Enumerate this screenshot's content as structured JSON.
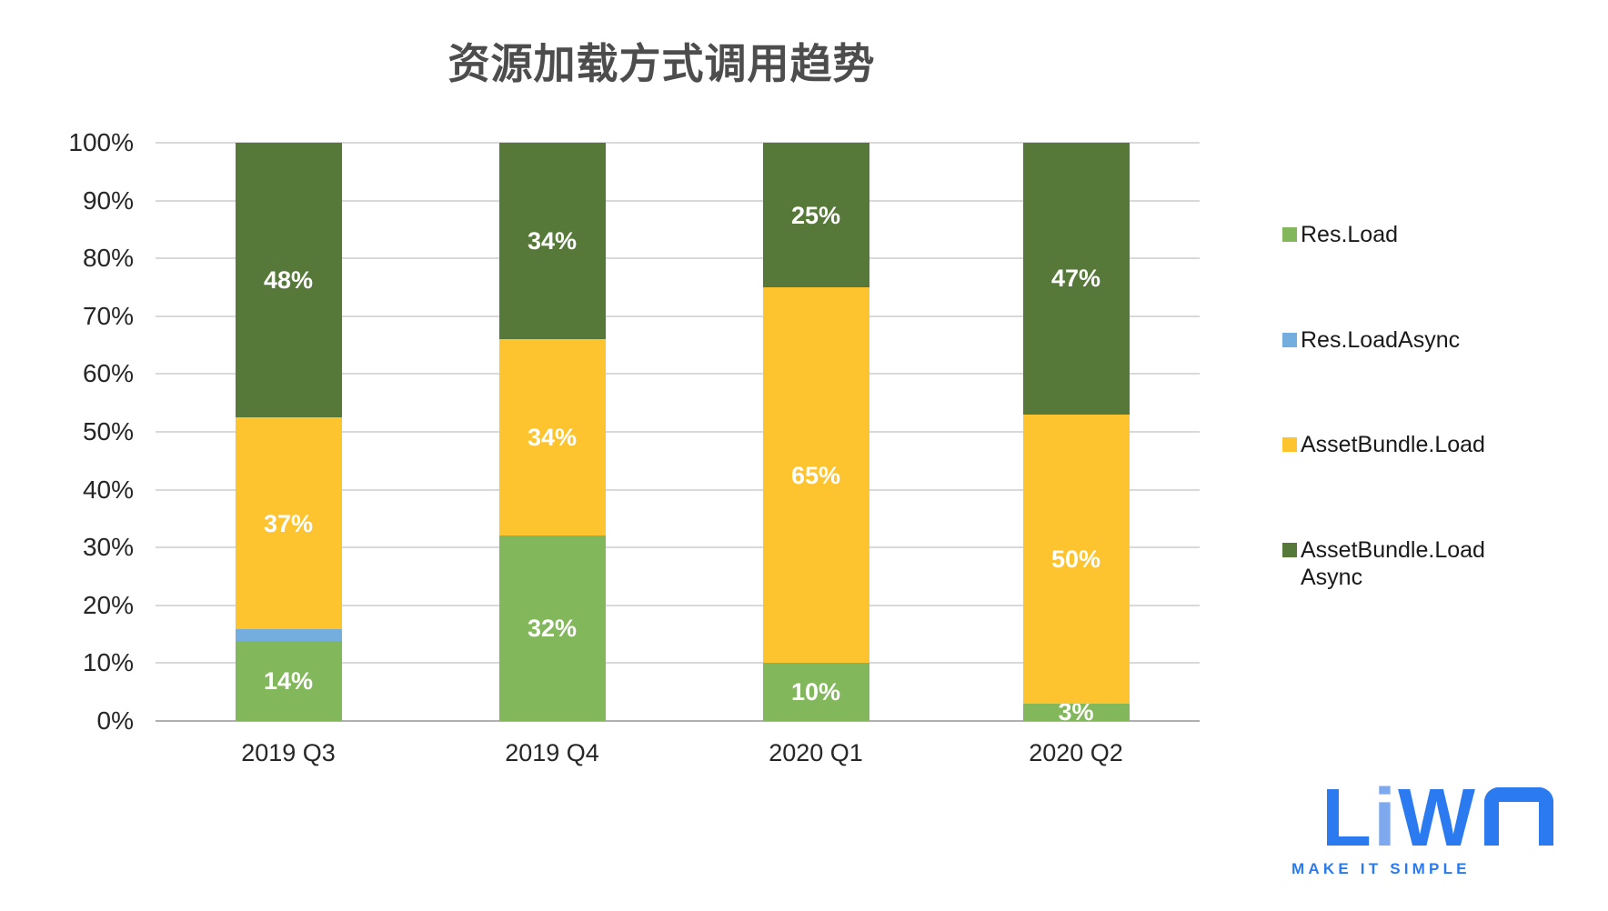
{
  "chart_data": {
    "type": "bar",
    "variant": "stacked-100-percent",
    "title": "资源加载方式调用趋势",
    "categories": [
      "2019 Q3",
      "2019 Q4",
      "2020 Q1",
      "2020 Q2"
    ],
    "series": [
      {
        "name": "Res.Load",
        "color": "#83B75C",
        "values": [
          14,
          32,
          10,
          3
        ]
      },
      {
        "name": "Res.LoadAsync",
        "color": "#74AEDE",
        "values": [
          2,
          0,
          0,
          0
        ]
      },
      {
        "name": "AssetBundle.Load",
        "color": "#FDC42F",
        "values": [
          37,
          34,
          65,
          50
        ]
      },
      {
        "name": "AssetBundle.LoadAsync",
        "color": "#567839",
        "values": [
          48,
          34,
          25,
          47
        ]
      }
    ],
    "data_label_format": "{value}%",
    "data_label_color": "#ffffff",
    "label_threshold": 3,
    "y_axis": {
      "min": 0,
      "max": 100,
      "step": 10,
      "ticks": [
        "0%",
        "10%",
        "20%",
        "30%",
        "40%",
        "50%",
        "60%",
        "70%",
        "80%",
        "90%",
        "100%"
      ]
    },
    "grid": "horizontal",
    "gridline_color": "#d9d9d9",
    "legend": {
      "position": "right",
      "items": [
        {
          "lines": [
            "Res.Load"
          ],
          "color": "#83B75C"
        },
        {
          "lines": [
            "Res.LoadAsync"
          ],
          "color": "#74AEDE"
        },
        {
          "lines": [
            "AssetBundle.Load"
          ],
          "color": "#FDC42F"
        },
        {
          "lines": [
            "AssetBundle.Load",
            "Async"
          ],
          "color": "#567839"
        }
      ]
    }
  },
  "logo": {
    "letters": [
      "L",
      "i",
      "W"
    ],
    "tagline": "MAKE IT SIMPLE",
    "color_primary": "#2b7af0",
    "color_light": "#7ea9ef"
  }
}
